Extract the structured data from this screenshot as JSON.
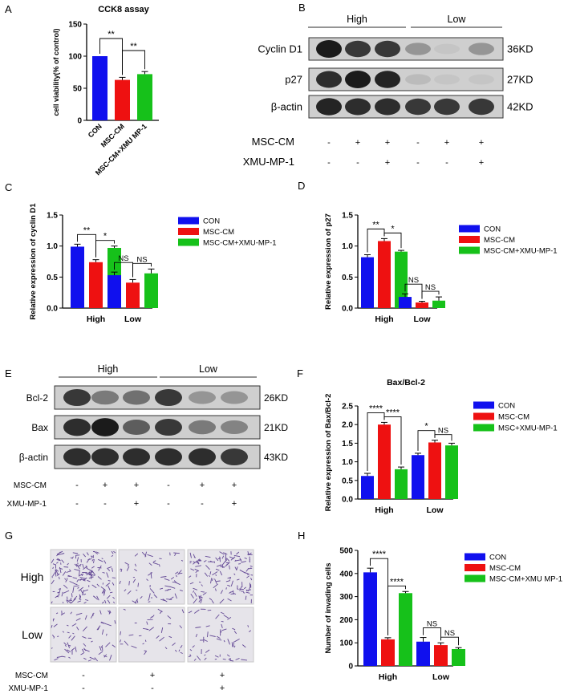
{
  "colors": {
    "con": "#1010ee",
    "msc": "#ee1111",
    "xmu": "#16c11a",
    "axis": "#000000",
    "stain": "#4b2d86"
  },
  "panel_letters": [
    "A",
    "B",
    "C",
    "D",
    "E",
    "F",
    "G",
    "H"
  ],
  "chart_data": [
    {
      "id": "A",
      "type": "bar",
      "title": "CCK8 assay",
      "ylabel": "cell viability(% of control)",
      "categories": [
        "CON",
        "MSC-CM",
        "MSC-CM+XMU MP-1"
      ],
      "values": [
        100,
        63,
        72
      ],
      "errors": [
        0,
        4,
        4
      ],
      "ylim": [
        0,
        150
      ],
      "yticks": [
        "0",
        "50",
        "100",
        "150"
      ],
      "colors": [
        "#1010ee",
        "#ee1111",
        "#16c11a"
      ],
      "sig": [
        {
          "from": 0,
          "to": 1,
          "label": "**"
        },
        {
          "from": 1,
          "to": 2,
          "label": "**"
        }
      ],
      "grid": false
    },
    {
      "id": "C",
      "type": "bar",
      "title": "",
      "ylabel": "Relative expression of cyclin D1",
      "groups": [
        "High",
        "Low"
      ],
      "series": [
        {
          "name": "CON",
          "values": [
            0.99,
            0.53
          ],
          "errors": [
            0.04,
            0.05
          ]
        },
        {
          "name": "MSC-CM",
          "values": [
            0.74,
            0.41
          ],
          "errors": [
            0.04,
            0.05
          ]
        },
        {
          "name": "MSC-CM+XMU-MP-1",
          "values": [
            0.97,
            0.56
          ],
          "errors": [
            0.03,
            0.07
          ]
        }
      ],
      "ylim": [
        0,
        1.5
      ],
      "yticks": [
        "0.0",
        "0.5",
        "1.0",
        "1.5"
      ],
      "sig": [
        {
          "group": 0,
          "from": 0,
          "to": 1,
          "label": "**"
        },
        {
          "group": 0,
          "from": 1,
          "to": 2,
          "label": "*"
        },
        {
          "group": 1,
          "from": 0,
          "to": 1,
          "label": "NS"
        },
        {
          "group": 1,
          "from": 1,
          "to": 2,
          "label": "NS"
        }
      ],
      "legend": "right",
      "grid": false
    },
    {
      "id": "D",
      "type": "bar",
      "title": "",
      "ylabel": "Relative expression of p27",
      "groups": [
        "High",
        "Low"
      ],
      "series": [
        {
          "name": "CON",
          "values": [
            0.82,
            0.18
          ],
          "errors": [
            0.04,
            0.05
          ]
        },
        {
          "name": "MSC-CM",
          "values": [
            1.08,
            0.09
          ],
          "errors": [
            0.04,
            0.02
          ]
        },
        {
          "name": "MSC-CM+XMU-MP-1",
          "values": [
            0.91,
            0.12
          ],
          "errors": [
            0.02,
            0.06
          ]
        }
      ],
      "ylim": [
        0,
        1.5
      ],
      "yticks": [
        "0.0",
        "0.5",
        "1.0",
        "1.5"
      ],
      "sig": [
        {
          "group": 0,
          "from": 0,
          "to": 1,
          "label": "**"
        },
        {
          "group": 0,
          "from": 1,
          "to": 2,
          "label": "*"
        },
        {
          "group": 1,
          "from": 0,
          "to": 1,
          "label": "NS"
        },
        {
          "group": 1,
          "from": 1,
          "to": 2,
          "label": "NS"
        }
      ],
      "legend": "right",
      "grid": false
    },
    {
      "id": "F",
      "type": "bar",
      "title": "Bax/Bcl-2",
      "ylabel": "Relative expression of Bax/Bcl-2",
      "groups": [
        "High",
        "Low"
      ],
      "series": [
        {
          "name": "CON",
          "values": [
            0.62,
            1.18
          ],
          "errors": [
            0.07,
            0.05
          ]
        },
        {
          "name": "MSC-CM",
          "values": [
            2.0,
            1.52
          ],
          "errors": [
            0.06,
            0.06
          ]
        },
        {
          "name": "MSC+XMU-MP-1",
          "values": [
            0.8,
            1.44
          ],
          "errors": [
            0.06,
            0.06
          ]
        }
      ],
      "ylim": [
        0,
        2.5
      ],
      "yticks": [
        "0.0",
        "0.5",
        "1.0",
        "1.5",
        "2.0",
        "2.5"
      ],
      "sig": [
        {
          "group": 0,
          "from": 0,
          "to": 1,
          "label": "****"
        },
        {
          "group": 0,
          "from": 1,
          "to": 2,
          "label": "****"
        },
        {
          "group": 1,
          "from": 0,
          "to": 1,
          "label": "*"
        },
        {
          "group": 1,
          "from": 1,
          "to": 2,
          "label": "NS"
        }
      ],
      "legend": "right",
      "grid": false
    },
    {
      "id": "H",
      "type": "bar",
      "title": "",
      "ylabel": "Number of invading cells",
      "groups": [
        "High",
        "Low"
      ],
      "series": [
        {
          "name": "CON",
          "values": [
            405,
            105
          ],
          "errors": [
            18,
            18
          ]
        },
        {
          "name": "MSC-CM",
          "values": [
            115,
            90
          ],
          "errors": [
            7,
            10
          ]
        },
        {
          "name": "MSC-CM+XMU MP-1",
          "values": [
            315,
            73
          ],
          "errors": [
            7,
            6
          ]
        }
      ],
      "ylim": [
        0,
        500
      ],
      "yticks": [
        "0",
        "100",
        "200",
        "300",
        "400",
        "500"
      ],
      "sig": [
        {
          "group": 0,
          "from": 0,
          "to": 1,
          "label": "****"
        },
        {
          "group": 0,
          "from": 1,
          "to": 2,
          "label": "****"
        },
        {
          "group": 1,
          "from": 0,
          "to": 1,
          "label": "NS"
        },
        {
          "group": 1,
          "from": 1,
          "to": 2,
          "label": "NS"
        }
      ],
      "legend": "right",
      "grid": false
    }
  ],
  "blot_B": {
    "groups": [
      "High",
      "Low"
    ],
    "rows": [
      {
        "label": "Cyclin D1",
        "size": "36KD",
        "intensity": [
          0.95,
          0.8,
          0.8,
          0.3,
          0.05,
          0.3
        ]
      },
      {
        "label": "p27",
        "size": "27KD",
        "intensity": [
          0.85,
          0.95,
          0.9,
          0.1,
          0.05,
          0.05
        ]
      },
      {
        "label": "β-actin",
        "size": "42KD",
        "intensity": [
          0.9,
          0.85,
          0.85,
          0.8,
          0.8,
          0.8
        ]
      }
    ],
    "treatments": [
      {
        "label": "MSC-CM",
        "marks": [
          "-",
          "+",
          "+",
          "-",
          "+",
          "+"
        ]
      },
      {
        "label": "XMU-MP-1",
        "marks": [
          "-",
          "-",
          "+",
          "-",
          "-",
          "+"
        ]
      }
    ]
  },
  "blot_E": {
    "groups": [
      "High",
      "Low"
    ],
    "rows": [
      {
        "label": "Bcl-2",
        "size": "26KD",
        "intensity": [
          0.8,
          0.45,
          0.5,
          0.8,
          0.3,
          0.3
        ]
      },
      {
        "label": "Bax",
        "size": "21KD",
        "intensity": [
          0.85,
          0.95,
          0.6,
          0.8,
          0.45,
          0.4
        ]
      },
      {
        "label": "β-actin",
        "size": "43KD",
        "intensity": [
          0.85,
          0.85,
          0.85,
          0.85,
          0.85,
          0.8
        ]
      }
    ],
    "treatments": [
      {
        "label": "MSC-CM",
        "marks": [
          "-",
          "+",
          "+",
          "-",
          "+",
          "+"
        ]
      },
      {
        "label": "XMU-MP-1",
        "marks": [
          "-",
          "-",
          "+",
          "-",
          "-",
          "+"
        ]
      }
    ]
  },
  "micro_G": {
    "rows": [
      "High",
      "Low"
    ],
    "density": [
      [
        0.9,
        0.35,
        0.75
      ],
      [
        0.4,
        0.2,
        0.3
      ]
    ],
    "treatments": [
      {
        "label": "MSC-CM",
        "marks": [
          "-",
          "+",
          "+"
        ]
      },
      {
        "label": "XMU-MP-1",
        "marks": [
          "-",
          "-",
          "+"
        ]
      }
    ]
  }
}
